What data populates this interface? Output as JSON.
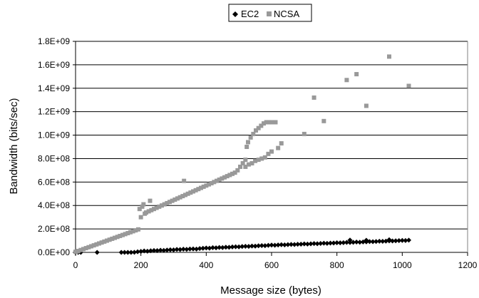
{
  "chart_data": {
    "type": "scatter",
    "title": "",
    "xlabel": "Message size (bytes)",
    "ylabel": "Bandwidth (bits/sec)",
    "xlim": [
      0,
      1200
    ],
    "ylim": [
      0,
      1800000000
    ],
    "x_ticks": [
      0,
      200,
      400,
      600,
      800,
      1000,
      1200
    ],
    "x_tick_labels": [
      "0",
      "200",
      "400",
      "600",
      "800",
      "1000",
      "1200"
    ],
    "y_ticks": [
      0,
      200000000,
      400000000,
      600000000,
      800000000,
      1000000000,
      1200000000,
      1400000000,
      1600000000,
      1800000000
    ],
    "y_tick_labels": [
      "0.0E+00",
      "2.0E+08",
      "4.0E+08",
      "6.0E+08",
      "8.0E+08",
      "1.0E+09",
      "1.2E+09",
      "1.4E+09",
      "1.6E+09",
      "1.8E+09"
    ],
    "grid": "horizontal",
    "legend_position": "top-center",
    "series": [
      {
        "name": "EC2",
        "marker": "diamond",
        "color": "#000000",
        "points": [
          [
            0,
            0
          ],
          [
            8,
            0
          ],
          [
            16,
            0
          ],
          [
            66,
            0
          ],
          [
            140,
            0
          ],
          [
            150,
            0
          ],
          [
            160,
            0
          ],
          [
            170,
            0
          ],
          [
            180,
            1000000
          ],
          [
            190,
            5000000
          ],
          [
            200,
            8000000
          ],
          [
            210,
            12000000
          ],
          [
            220,
            10000000
          ],
          [
            230,
            14000000
          ],
          [
            240,
            16000000
          ],
          [
            250,
            15000000
          ],
          [
            260,
            18000000
          ],
          [
            270,
            17000000
          ],
          [
            280,
            20000000
          ],
          [
            290,
            22000000
          ],
          [
            300,
            21000000
          ],
          [
            310,
            25000000
          ],
          [
            320,
            24000000
          ],
          [
            330,
            27000000
          ],
          [
            340,
            26000000
          ],
          [
            350,
            29000000
          ],
          [
            360,
            30000000
          ],
          [
            370,
            28000000
          ],
          [
            380,
            33000000
          ],
          [
            390,
            35000000
          ],
          [
            400,
            37000000
          ],
          [
            410,
            36000000
          ],
          [
            420,
            40000000
          ],
          [
            430,
            39000000
          ],
          [
            440,
            42000000
          ],
          [
            450,
            41000000
          ],
          [
            460,
            44000000
          ],
          [
            470,
            43000000
          ],
          [
            480,
            46000000
          ],
          [
            490,
            48000000
          ],
          [
            500,
            47000000
          ],
          [
            510,
            50000000
          ],
          [
            520,
            52000000
          ],
          [
            530,
            51000000
          ],
          [
            540,
            54000000
          ],
          [
            550,
            53000000
          ],
          [
            560,
            56000000
          ],
          [
            570,
            58000000
          ],
          [
            580,
            57000000
          ],
          [
            590,
            60000000
          ],
          [
            600,
            62000000
          ],
          [
            610,
            61000000
          ],
          [
            620,
            63000000
          ],
          [
            630,
            65000000
          ],
          [
            640,
            64000000
          ],
          [
            650,
            66000000
          ],
          [
            660,
            68000000
          ],
          [
            670,
            67000000
          ],
          [
            680,
            69000000
          ],
          [
            690,
            70000000
          ],
          [
            700,
            72000000
          ],
          [
            710,
            71000000
          ],
          [
            720,
            73000000
          ],
          [
            730,
            75000000
          ],
          [
            740,
            74000000
          ],
          [
            750,
            76000000
          ],
          [
            760,
            78000000
          ],
          [
            770,
            77000000
          ],
          [
            780,
            79000000
          ],
          [
            790,
            80000000
          ],
          [
            800,
            82000000
          ],
          [
            810,
            81000000
          ],
          [
            820,
            83000000
          ],
          [
            830,
            85000000
          ],
          [
            840,
            84000000
          ],
          [
            850,
            86000000
          ],
          [
            860,
            88000000
          ],
          [
            870,
            87000000
          ],
          [
            880,
            89000000
          ],
          [
            890,
            90000000
          ],
          [
            900,
            92000000
          ],
          [
            910,
            91000000
          ],
          [
            920,
            93000000
          ],
          [
            930,
            95000000
          ],
          [
            940,
            94000000
          ],
          [
            950,
            96000000
          ],
          [
            960,
            98000000
          ],
          [
            970,
            97000000
          ],
          [
            980,
            99000000
          ],
          [
            990,
            100000000
          ],
          [
            1000,
            102000000
          ],
          [
            1010,
            101000000
          ],
          [
            1020,
            104000000
          ],
          [
            840,
            105000000
          ],
          [
            890,
            103000000
          ],
          [
            960,
            108000000
          ]
        ]
      },
      {
        "name": "NCSA",
        "marker": "square",
        "color": "#999999",
        "points": [
          [
            0,
            5000000
          ],
          [
            4,
            8000000
          ],
          [
            8,
            12000000
          ],
          [
            16,
            20000000
          ],
          [
            24,
            28000000
          ],
          [
            32,
            36000000
          ],
          [
            40,
            44000000
          ],
          [
            48,
            52000000
          ],
          [
            56,
            60000000
          ],
          [
            64,
            68000000
          ],
          [
            72,
            76000000
          ],
          [
            80,
            84000000
          ],
          [
            88,
            92000000
          ],
          [
            96,
            100000000
          ],
          [
            104,
            108000000
          ],
          [
            112,
            116000000
          ],
          [
            120,
            124000000
          ],
          [
            128,
            132000000
          ],
          [
            136,
            140000000
          ],
          [
            144,
            148000000
          ],
          [
            152,
            156000000
          ],
          [
            160,
            164000000
          ],
          [
            168,
            172000000
          ],
          [
            176,
            180000000
          ],
          [
            184,
            188000000
          ],
          [
            192,
            196000000
          ],
          [
            196,
            370000000
          ],
          [
            200,
            300000000
          ],
          [
            204,
            390000000
          ],
          [
            208,
            410000000
          ],
          [
            212,
            330000000
          ],
          [
            216,
            340000000
          ],
          [
            224,
            350000000
          ],
          [
            228,
            440000000
          ],
          [
            232,
            360000000
          ],
          [
            240,
            370000000
          ],
          [
            248,
            380000000
          ],
          [
            256,
            390000000
          ],
          [
            264,
            400000000
          ],
          [
            272,
            410000000
          ],
          [
            280,
            420000000
          ],
          [
            288,
            430000000
          ],
          [
            296,
            440000000
          ],
          [
            304,
            450000000
          ],
          [
            312,
            460000000
          ],
          [
            320,
            470000000
          ],
          [
            328,
            480000000
          ],
          [
            332,
            610000000
          ],
          [
            336,
            490000000
          ],
          [
            344,
            500000000
          ],
          [
            352,
            510000000
          ],
          [
            360,
            520000000
          ],
          [
            368,
            530000000
          ],
          [
            376,
            540000000
          ],
          [
            384,
            550000000
          ],
          [
            392,
            560000000
          ],
          [
            400,
            570000000
          ],
          [
            408,
            580000000
          ],
          [
            416,
            590000000
          ],
          [
            424,
            600000000
          ],
          [
            432,
            610000000
          ],
          [
            440,
            620000000
          ],
          [
            448,
            630000000
          ],
          [
            456,
            640000000
          ],
          [
            464,
            650000000
          ],
          [
            472,
            660000000
          ],
          [
            480,
            670000000
          ],
          [
            488,
            680000000
          ],
          [
            496,
            700000000
          ],
          [
            504,
            730000000
          ],
          [
            512,
            760000000
          ],
          [
            520,
            790000000
          ],
          [
            524,
            900000000
          ],
          [
            528,
            940000000
          ],
          [
            536,
            980000000
          ],
          [
            544,
            1010000000
          ],
          [
            552,
            1040000000
          ],
          [
            560,
            1060000000
          ],
          [
            568,
            1080000000
          ],
          [
            576,
            1100000000
          ],
          [
            584,
            1110000000
          ],
          [
            592,
            1110000000
          ],
          [
            600,
            1110000000
          ],
          [
            612,
            1110000000
          ],
          [
            520,
            730000000
          ],
          [
            530,
            750000000
          ],
          [
            540,
            760000000
          ],
          [
            550,
            780000000
          ],
          [
            560,
            790000000
          ],
          [
            570,
            800000000
          ],
          [
            580,
            810000000
          ],
          [
            590,
            840000000
          ],
          [
            600,
            860000000
          ],
          [
            620,
            890000000
          ],
          [
            630,
            930000000
          ],
          [
            700,
            1010000000
          ],
          [
            730,
            1320000000
          ],
          [
            760,
            1120000000
          ],
          [
            830,
            1470000000
          ],
          [
            860,
            1520000000
          ],
          [
            890,
            1250000000
          ],
          [
            960,
            1670000000
          ],
          [
            1020,
            1420000000
          ]
        ]
      }
    ]
  }
}
